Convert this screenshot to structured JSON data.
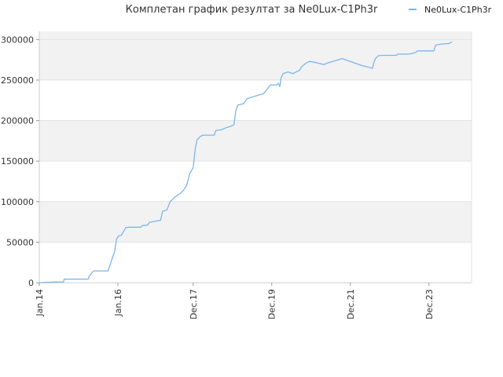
{
  "chart_data": {
    "type": "line",
    "title": "Комплетан график резултат за Ne0Lux-C1Ph3r",
    "xlabel": "",
    "ylabel": "",
    "x_range": [
      "2014-01-01",
      "2024-12-31"
    ],
    "ylim": [
      0,
      310000
    ],
    "y_ticks": [
      0,
      50000,
      100000,
      150000,
      200000,
      250000,
      300000
    ],
    "y_tick_labels": [
      "0",
      "50000",
      "100000",
      "150000",
      "200000",
      "250000",
      "300000"
    ],
    "x_ticks": [
      "2014-01-01",
      "2016-01-01",
      "2017-12-01",
      "2019-12-01",
      "2021-12-01",
      "2023-12-01"
    ],
    "x_tick_labels": [
      "Jan.14",
      "Jan.16",
      "Dec.17",
      "Dec.19",
      "Dec.21",
      "Dec.23"
    ],
    "grid": true,
    "legend_position": "top-right",
    "series": [
      {
        "name": "Ne0Lux-C1Ph3r",
        "color": "#7cb5ec",
        "points": [
          [
            "2014-01-01",
            0
          ],
          [
            "2014-03-01",
            500
          ],
          [
            "2014-06-01",
            1000
          ],
          [
            "2014-08-15",
            1000
          ],
          [
            "2014-08-20",
            4500
          ],
          [
            "2015-04-01",
            4500
          ],
          [
            "2015-04-10",
            8000
          ],
          [
            "2015-05-20",
            14500
          ],
          [
            "2015-10-01",
            14500
          ],
          [
            "2015-10-20",
            22000
          ],
          [
            "2015-11-15",
            32000
          ],
          [
            "2015-12-01",
            38000
          ],
          [
            "2015-12-20",
            54000
          ],
          [
            "2016-01-10",
            58000
          ],
          [
            "2016-02-01",
            58500
          ],
          [
            "2016-03-15",
            68000
          ],
          [
            "2016-04-15",
            68500
          ],
          [
            "2016-08-01",
            68500
          ],
          [
            "2016-08-15",
            70500
          ],
          [
            "2016-10-01",
            71000
          ],
          [
            "2016-10-20",
            74500
          ],
          [
            "2017-02-01",
            77000
          ],
          [
            "2017-02-20",
            88000
          ],
          [
            "2017-04-01",
            90000
          ],
          [
            "2017-05-01",
            100000
          ],
          [
            "2017-06-15",
            106000
          ],
          [
            "2017-08-01",
            110000
          ],
          [
            "2017-09-01",
            114000
          ],
          [
            "2017-10-01",
            120000
          ],
          [
            "2017-11-01",
            135000
          ],
          [
            "2017-12-01",
            142000
          ],
          [
            "2017-12-20",
            165000
          ],
          [
            "2018-01-05",
            176000
          ],
          [
            "2018-02-01",
            180000
          ],
          [
            "2018-03-01",
            182000
          ],
          [
            "2018-06-15",
            182000
          ],
          [
            "2018-07-01",
            188000
          ],
          [
            "2018-08-15",
            188500
          ],
          [
            "2018-10-01",
            191000
          ],
          [
            "2018-11-15",
            193000
          ],
          [
            "2018-12-15",
            195000
          ],
          [
            "2019-01-01",
            212000
          ],
          [
            "2019-01-20",
            219000
          ],
          [
            "2019-03-15",
            221000
          ],
          [
            "2019-04-15",
            227000
          ],
          [
            "2019-06-01",
            229000
          ],
          [
            "2019-08-15",
            232000
          ],
          [
            "2019-09-15",
            233000
          ],
          [
            "2019-10-15",
            238000
          ],
          [
            "2019-11-20",
            244000
          ],
          [
            "2020-01-15",
            244000
          ],
          [
            "2020-02-01",
            246000
          ],
          [
            "2020-02-15",
            242000
          ],
          [
            "2020-02-25",
            252000
          ],
          [
            "2020-03-15",
            258000
          ],
          [
            "2020-05-01",
            260000
          ],
          [
            "2020-06-15",
            258000
          ],
          [
            "2020-07-15",
            260000
          ],
          [
            "2020-08-15",
            262000
          ],
          [
            "2020-09-01",
            266000
          ],
          [
            "2020-10-15",
            271000
          ],
          [
            "2020-11-15",
            273000
          ],
          [
            "2021-01-15",
            271500
          ],
          [
            "2021-04-01",
            269000
          ],
          [
            "2021-04-20",
            270500
          ],
          [
            "2021-09-15",
            276500
          ],
          [
            "2022-03-15",
            268000
          ],
          [
            "2022-06-15",
            265000
          ],
          [
            "2022-06-25",
            264500
          ],
          [
            "2022-07-05",
            271000
          ],
          [
            "2022-07-20",
            276000
          ],
          [
            "2022-08-15",
            280000
          ],
          [
            "2022-10-01",
            280500
          ],
          [
            "2023-02-01",
            280500
          ],
          [
            "2023-02-15",
            282000
          ],
          [
            "2023-06-01",
            282000
          ],
          [
            "2023-07-01",
            283000
          ],
          [
            "2023-08-01",
            284000
          ],
          [
            "2023-08-15",
            286000
          ],
          [
            "2023-12-01",
            286000
          ],
          [
            "2024-01-15",
            286000
          ],
          [
            "2024-02-01",
            293000
          ],
          [
            "2024-04-01",
            294500
          ],
          [
            "2024-06-01",
            295000
          ],
          [
            "2024-07-01",
            297000
          ]
        ]
      }
    ]
  }
}
